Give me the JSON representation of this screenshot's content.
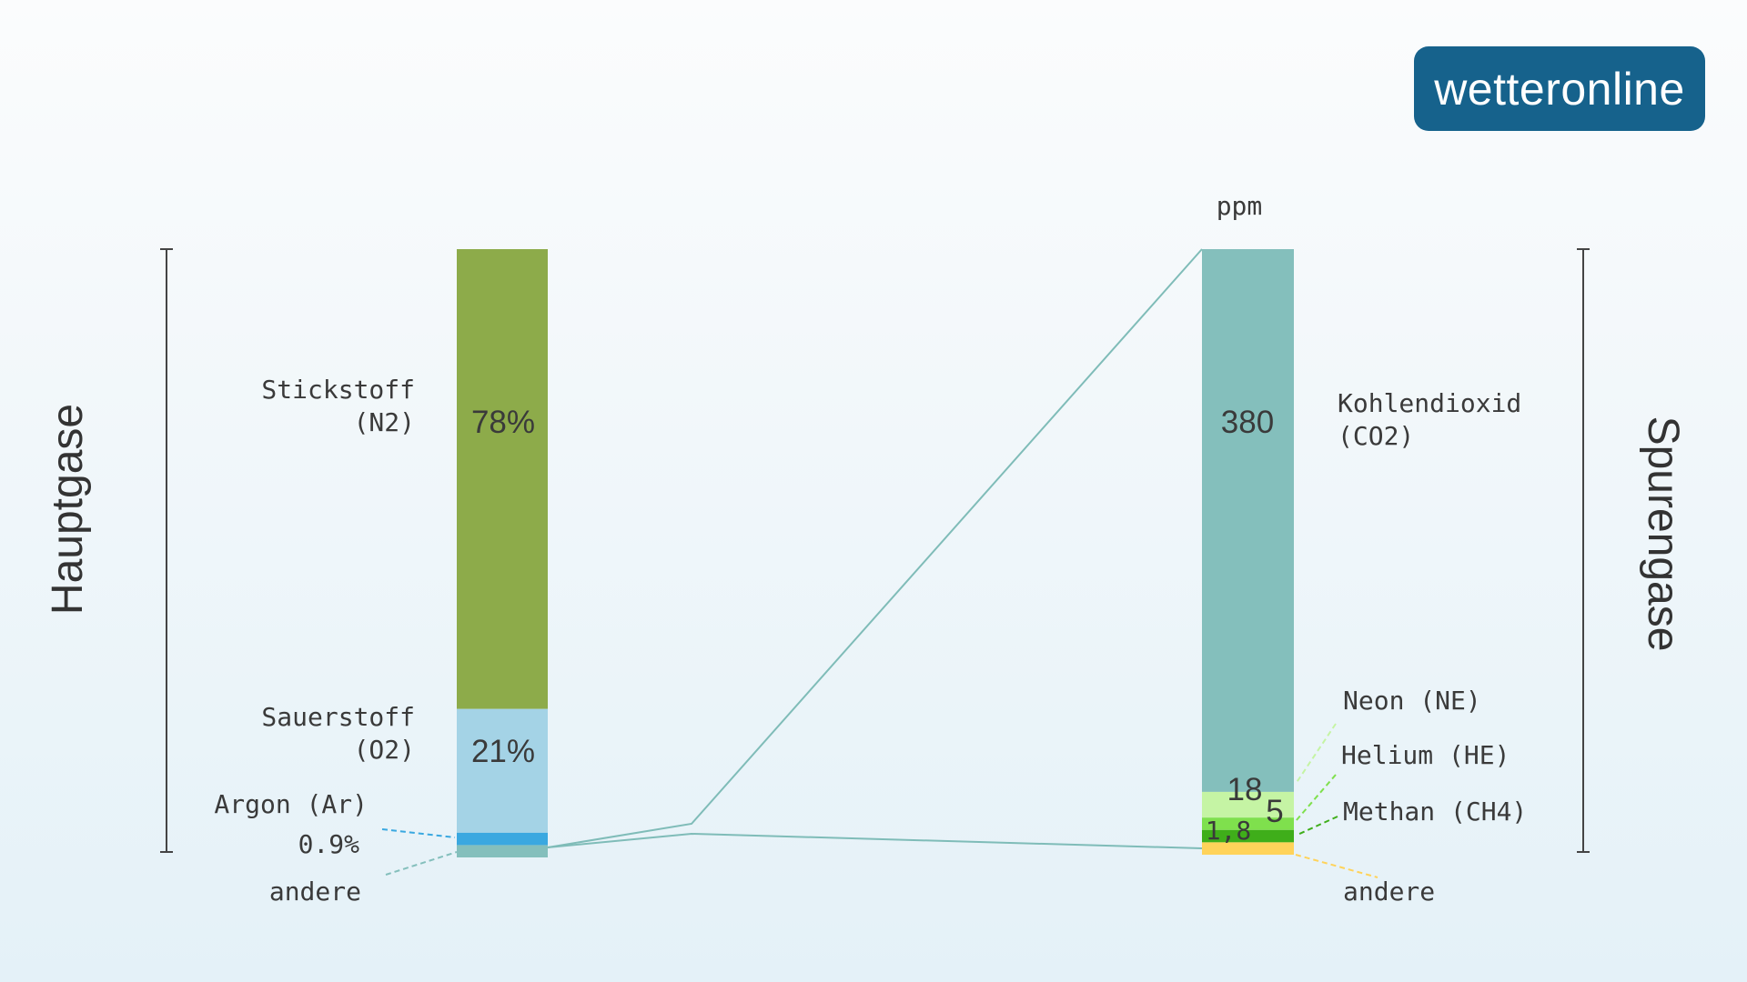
{
  "brand": {
    "logo_text": "wetteronline",
    "bg_color": "#16628c"
  },
  "chart_data": [
    {
      "type": "bar",
      "stacked": true,
      "side_label": "Hauptgase",
      "unit": "%",
      "segments": [
        {
          "name": "Stickstoff (N2)",
          "label_line1": "Stickstoff",
          "label_line2": "(N2)",
          "value": 78,
          "value_label": "78%",
          "color": "#8dab4a"
        },
        {
          "name": "Sauerstoff (O2)",
          "label_line1": "Sauerstoff",
          "label_line2": "(O2)",
          "value": 21,
          "value_label": "21%",
          "color": "#a4d3e6"
        },
        {
          "name": "Argon (Ar)",
          "label_line1": "Argon (Ar)",
          "value": 0.9,
          "value_label": "0.9%",
          "color": "#3aa8e0"
        },
        {
          "name": "andere",
          "label_line1": "andere",
          "value": 0.1,
          "color": "#84bfbc"
        }
      ]
    },
    {
      "type": "bar",
      "stacked": true,
      "side_label": "Spurengase",
      "unit": "ppm",
      "segments": [
        {
          "name": "Kohlendioxid (CO2)",
          "label_line1": "Kohlendioxid",
          "label_line2": "(CO2)",
          "value": 380,
          "value_label": "380",
          "color": "#84bfbc"
        },
        {
          "name": "Neon (NE)",
          "label_line1": "Neon (NE)",
          "value": 18,
          "value_label": "18",
          "color": "#c5f4a4"
        },
        {
          "name": "Helium (HE)",
          "label_line1": "Helium (HE)",
          "value": 5,
          "value_label": "5",
          "color": "#7fe04d"
        },
        {
          "name": "Methan (CH4)",
          "label_line1": "Methan (CH4)",
          "value": 1.8,
          "value_label": "1,8",
          "color": "#3fae1a"
        },
        {
          "name": "andere",
          "label_line1": "andere",
          "value": 7.2,
          "color": "#ffd35a"
        }
      ]
    }
  ]
}
